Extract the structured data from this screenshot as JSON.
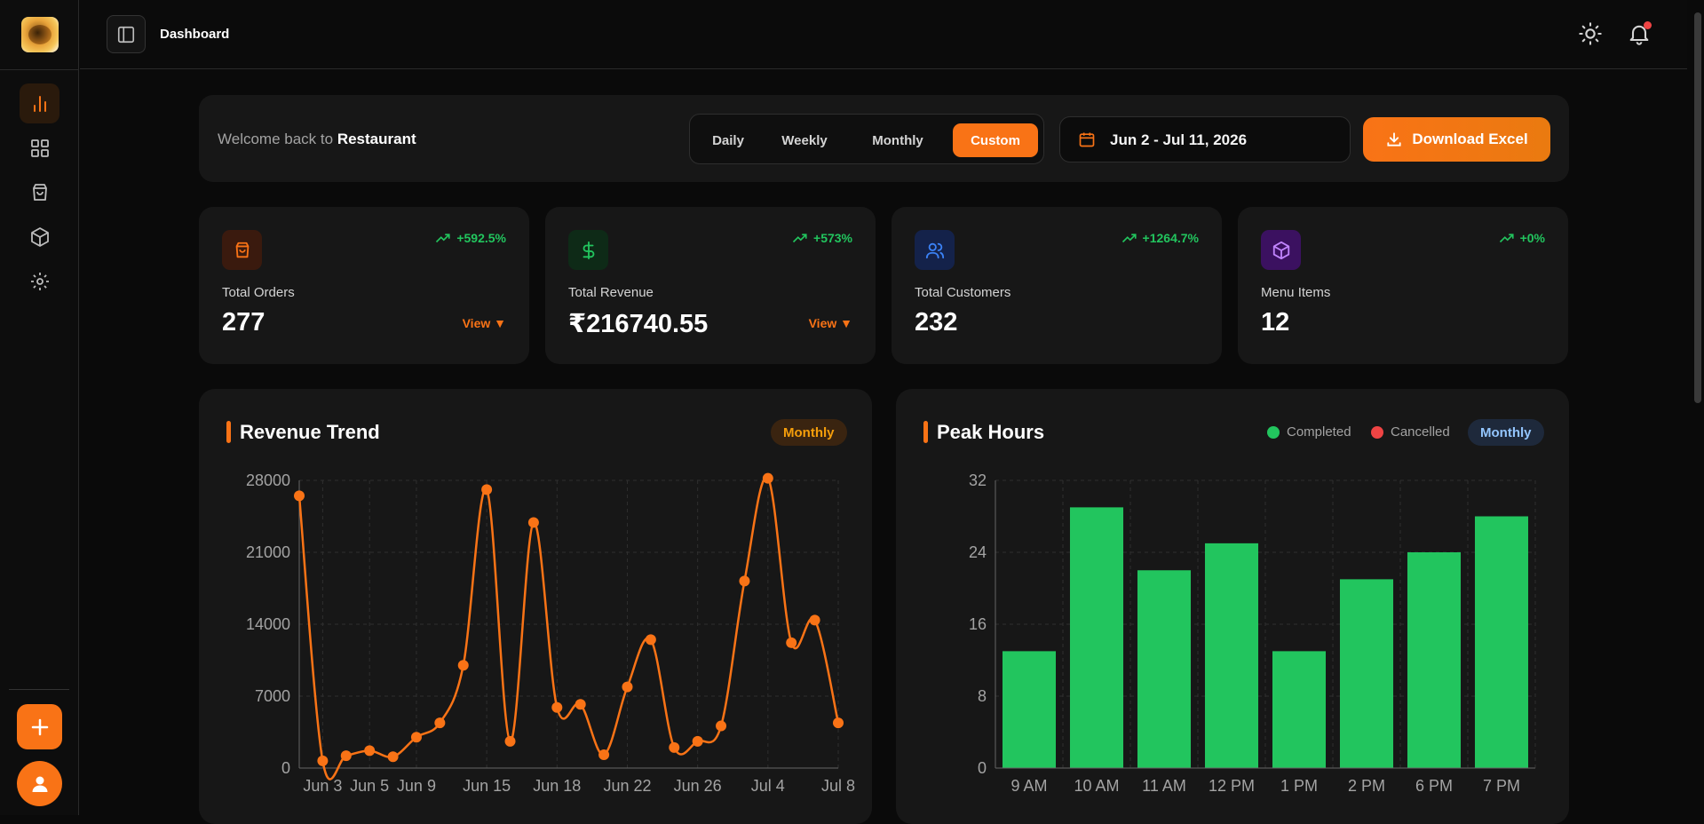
{
  "sidebar": {
    "logo_icon": "restaurant-logo",
    "items": [
      {
        "icon": "bar-chart-icon",
        "active": true
      },
      {
        "icon": "grid-icon",
        "active": false
      },
      {
        "icon": "shopping-bag-icon",
        "active": false
      },
      {
        "icon": "box-icon",
        "active": false
      },
      {
        "icon": "gear-icon",
        "active": false
      }
    ],
    "add_icon": "plus-icon",
    "avatar_icon": "user-icon"
  },
  "header": {
    "title": "Dashboard",
    "icons": [
      "sidebar-toggle-icon",
      "sun-icon",
      "bell-icon"
    ]
  },
  "welcome": {
    "prefix": "Welcome back to",
    "name": "Restaurant"
  },
  "periods": {
    "options": [
      "Daily",
      "Weekly",
      "Monthly",
      "Custom"
    ],
    "active": "Custom"
  },
  "date_range": "Jun 2 - Jul 11, 2026",
  "download_label": "Download Excel",
  "stats": [
    {
      "label": "Total Orders",
      "value": "277",
      "change": "+592.5%",
      "view": "View ▼",
      "icon": "shopping-bag-icon",
      "color": "#f97316"
    },
    {
      "label": "Total Revenue",
      "value": "₹216740.55",
      "change": "+573%",
      "view": "View ▼",
      "icon": "dollar-icon",
      "color": "#22c55e"
    },
    {
      "label": "Total Customers",
      "value": "232",
      "change": "+1264.7%",
      "view": "",
      "icon": "users-icon",
      "color": "#3b82f6"
    },
    {
      "label": "Menu Items",
      "value": "12",
      "change": "+0%",
      "view": "",
      "icon": "box-icon",
      "color": "#a855f7"
    }
  ],
  "revenue_chart": {
    "title": "Revenue Trend",
    "badge": "Monthly"
  },
  "peak_chart": {
    "title": "Peak Hours",
    "badge": "Monthly",
    "legend": [
      {
        "name": "Completed",
        "color": "#22c55e"
      },
      {
        "name": "Cancelled",
        "color": "#ef4444"
      }
    ]
  },
  "chart_data": [
    {
      "type": "line",
      "title": "Revenue Trend",
      "ylim": [
        0,
        28000
      ],
      "yticks": [
        0,
        7000,
        14000,
        21000,
        28000
      ],
      "xtick_labels": [
        "Jun 3",
        "Jun 5",
        "Jun 9",
        "Jun 15",
        "Jun 18",
        "Jun 22",
        "Jun 26",
        "Jul 4",
        "Jul 8"
      ],
      "xtick_index": [
        1,
        3,
        5,
        8,
        11,
        14,
        17,
        20,
        23
      ],
      "n_points": 24,
      "color": "#f97316",
      "grid": true,
      "values": [
        26500,
        700,
        1200,
        1700,
        1100,
        3000,
        4400,
        10000,
        27100,
        2600,
        23900,
        5900,
        6200,
        1300,
        7900,
        12500,
        2000,
        2600,
        4100,
        18200,
        28200,
        12200,
        14400,
        4400
      ]
    },
    {
      "type": "bar",
      "title": "Peak Hours",
      "categories": [
        "9 AM",
        "10 AM",
        "11 AM",
        "12 PM",
        "1 PM",
        "2 PM",
        "6 PM",
        "7 PM"
      ],
      "ylim": [
        0,
        32
      ],
      "yticks": [
        0,
        8,
        16,
        24,
        32
      ],
      "grid": true,
      "series": [
        {
          "name": "Completed",
          "color": "#22c55e",
          "values": [
            13,
            29,
            22,
            25,
            13,
            21,
            24,
            28
          ]
        }
      ]
    }
  ]
}
